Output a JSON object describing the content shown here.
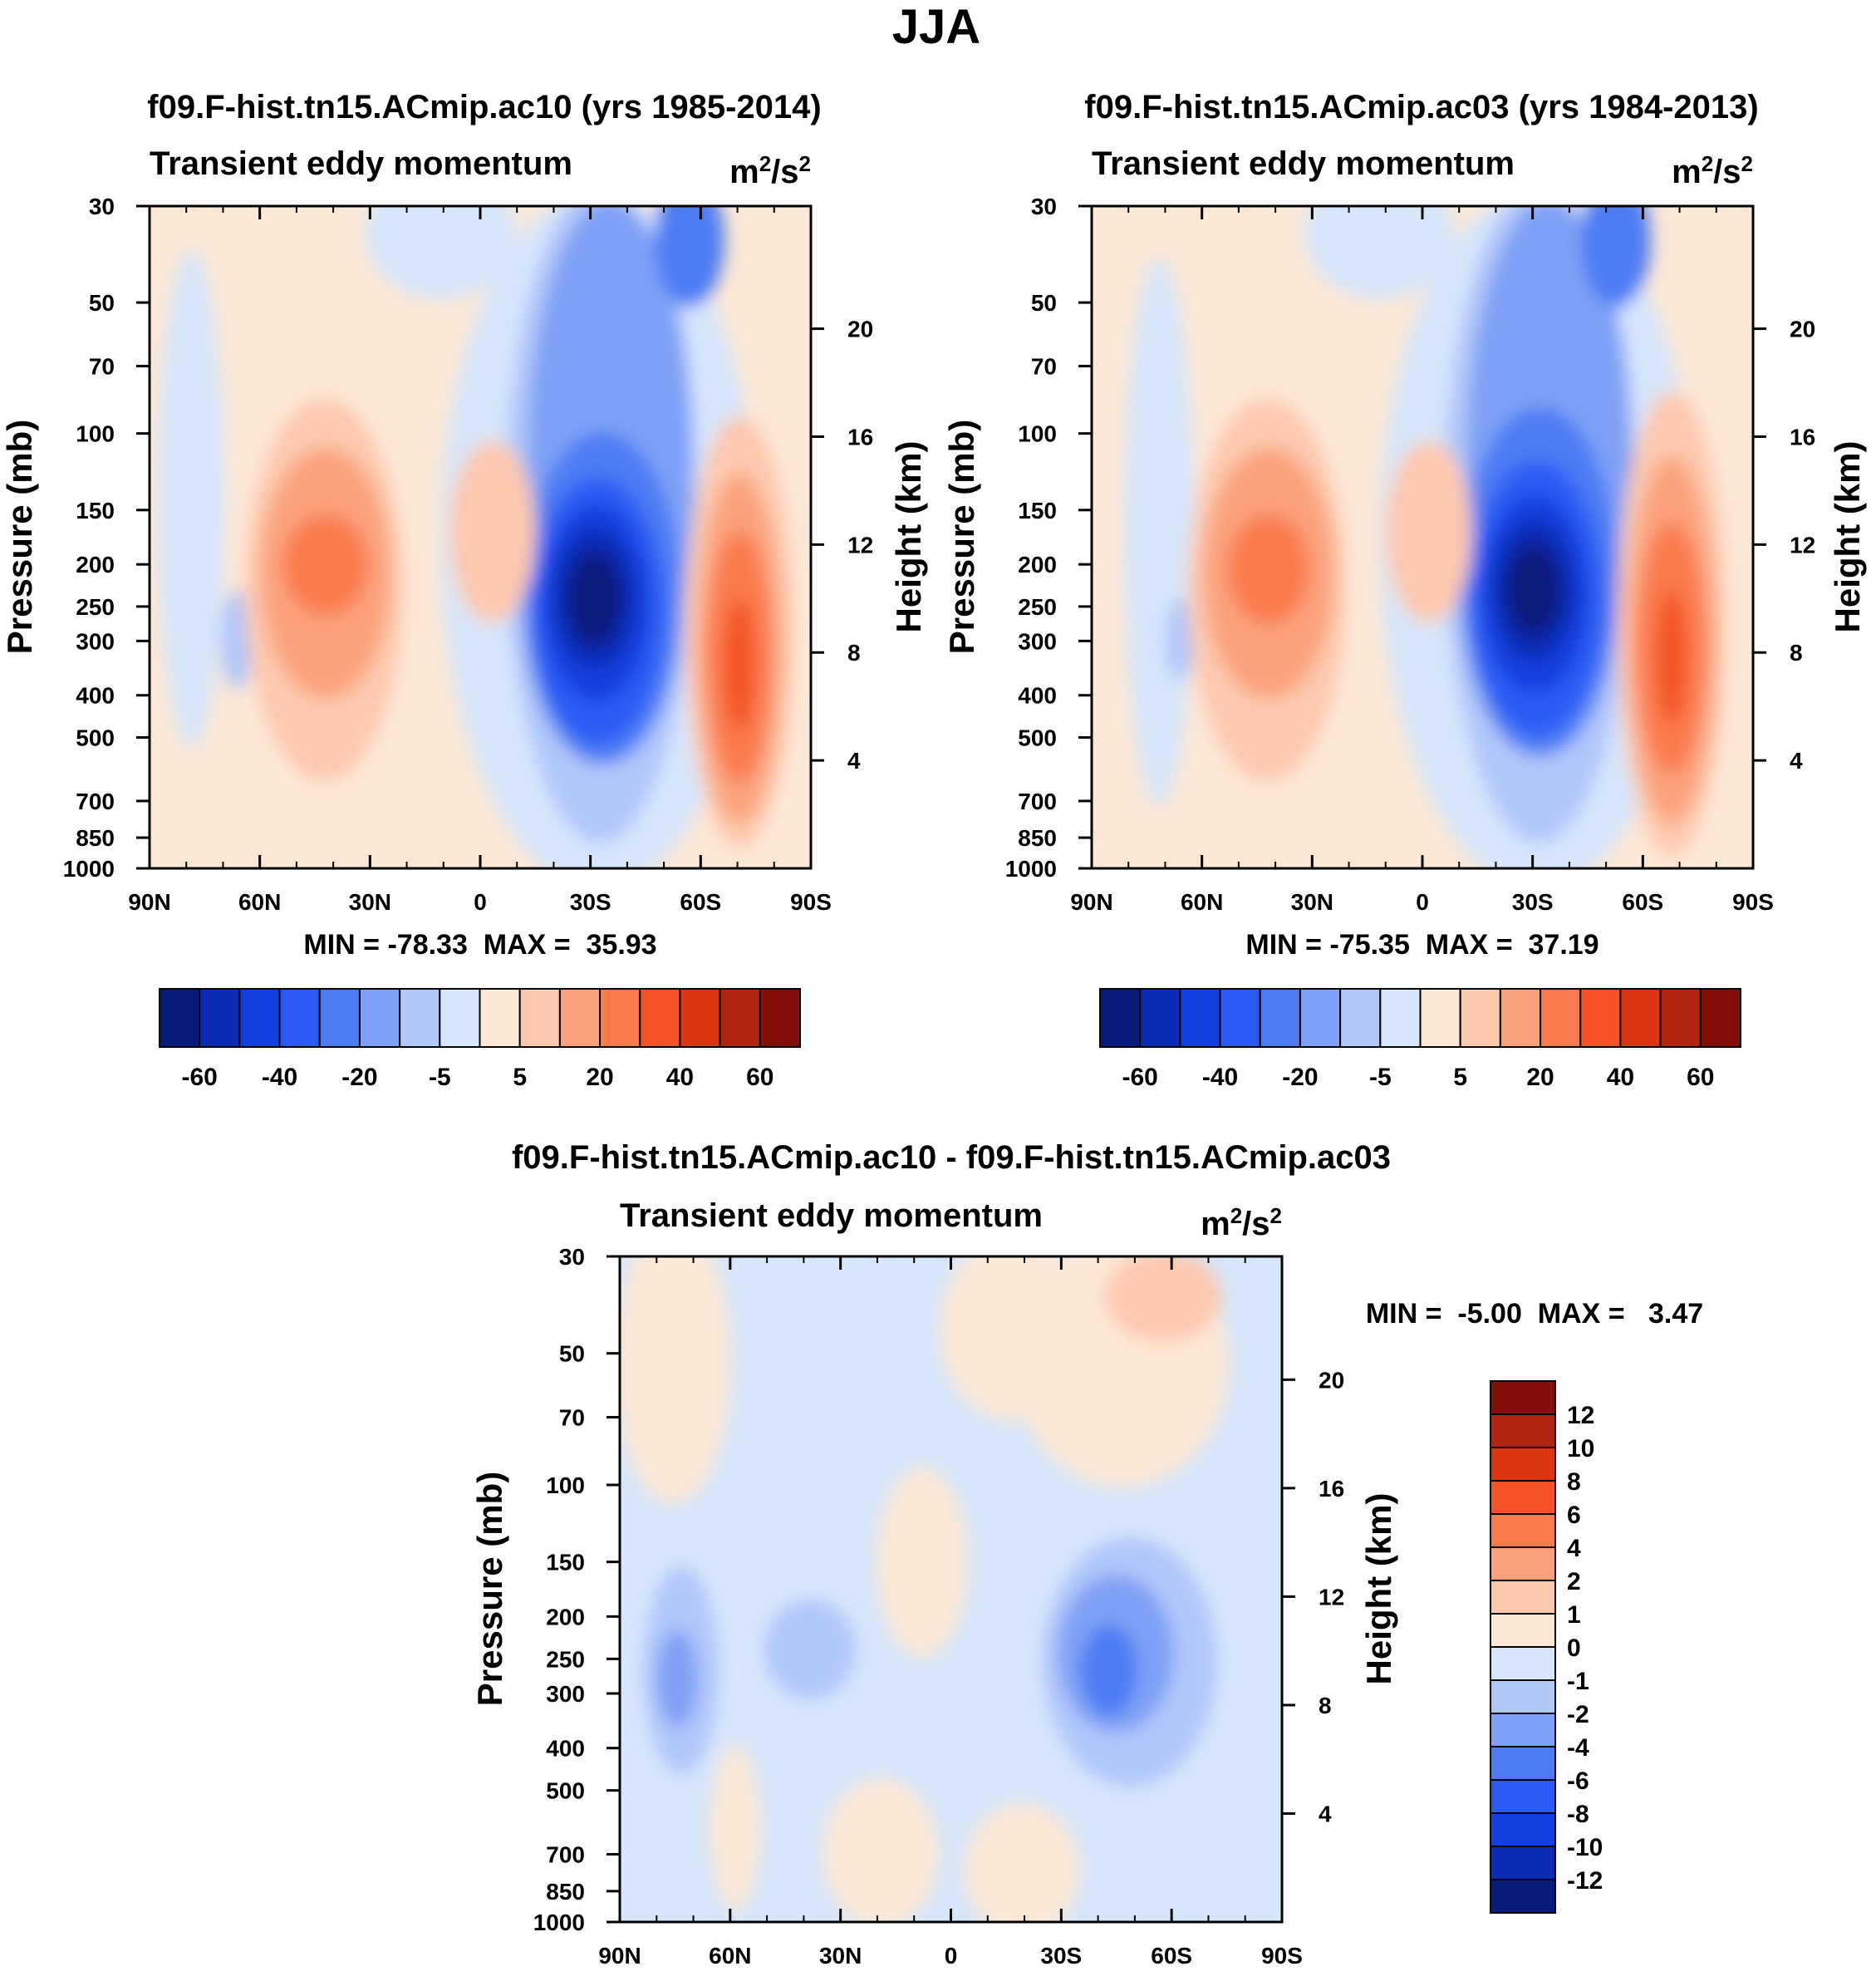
{
  "figure_title": "JJA",
  "chart_data": [
    {
      "type": "contour",
      "title": "f09.F-hist.tn15.ACmip.ac10 (yrs 1985-2014)",
      "subtitle_left": "Transient eddy momentum",
      "units": "m²/s²",
      "xlabel": "",
      "ylabel": "Pressure (mb)",
      "ylabel_right": "Height (km)",
      "x_ticks": [
        "90N",
        "60N",
        "30N",
        "0",
        "30S",
        "60S",
        "90S"
      ],
      "x_values": [
        90,
        60,
        30,
        0,
        -30,
        -60,
        -90
      ],
      "y_ticks": [
        30,
        50,
        70,
        100,
        150,
        200,
        250,
        300,
        400,
        500,
        700,
        850,
        1000
      ],
      "height_ticks": [
        20,
        16,
        12,
        8,
        4
      ],
      "ylim": [
        1000,
        30
      ],
      "stats": "MIN = -78.33  MAX =  35.93",
      "stats_min": -78.33,
      "stats_max": 35.93,
      "features": [
        {
          "lat": -32,
          "p": 270,
          "value": -75,
          "note": "SH subtropical negative core"
        },
        {
          "lat": -70,
          "p": 320,
          "value": 35,
          "note": "SH high-latitude positive core"
        },
        {
          "lat": 41,
          "p": 210,
          "value": 30,
          "note": "NH midlatitude positive core"
        },
        {
          "lat": 2,
          "p": 175,
          "value": 12,
          "note": "equatorial positive"
        },
        {
          "lat": 66,
          "p": 290,
          "value": -4,
          "note": "NH high-latitude weak negative"
        }
      ]
    },
    {
      "type": "contour",
      "title": "f09.F-hist.tn15.ACmip.ac03 (yrs 1984-2013)",
      "subtitle_left": "Transient eddy momentum",
      "units": "m²/s²",
      "xlabel": "",
      "ylabel": "Pressure (mb)",
      "ylabel_right": "Height (km)",
      "x_ticks": [
        "90N",
        "60N",
        "30N",
        "0",
        "30S",
        "60S",
        "90S"
      ],
      "x_values": [
        90,
        60,
        30,
        0,
        -30,
        -60,
        -90
      ],
      "y_ticks": [
        30,
        50,
        70,
        100,
        150,
        200,
        250,
        300,
        400,
        500,
        700,
        850,
        1000
      ],
      "height_ticks": [
        20,
        16,
        12,
        8,
        4
      ],
      "ylim": [
        1000,
        30
      ],
      "stats": "MIN = -75.35  MAX =  37.19",
      "stats_min": -75.35,
      "stats_max": 37.19,
      "features": [
        {
          "lat": -31,
          "p": 260,
          "value": -72,
          "note": "SH subtropical negative core"
        },
        {
          "lat": -68,
          "p": 300,
          "value": 37,
          "note": "SH high-latitude positive core"
        },
        {
          "lat": 41,
          "p": 210,
          "value": 32,
          "note": "NH midlatitude positive core"
        },
        {
          "lat": 3,
          "p": 175,
          "value": 12,
          "note": "equatorial positive"
        },
        {
          "lat": 66,
          "p": 290,
          "value": -3,
          "note": "NH high-latitude weak negative"
        }
      ]
    },
    {
      "type": "contour",
      "title": "f09.F-hist.tn15.ACmip.ac10 - f09.F-hist.tn15.ACmip.ac03",
      "subtitle_left": "Transient eddy momentum",
      "units": "m²/s²",
      "xlabel": "",
      "ylabel": "Pressure (mb)",
      "ylabel_right": "Height (km)",
      "x_ticks": [
        "90N",
        "60N",
        "30N",
        "0",
        "30S",
        "60S",
        "90S"
      ],
      "x_values": [
        90,
        60,
        30,
        0,
        -30,
        -60,
        -90
      ],
      "y_ticks": [
        30,
        50,
        70,
        100,
        150,
        200,
        250,
        300,
        400,
        500,
        700,
        850,
        1000
      ],
      "height_ticks": [
        20,
        16,
        12,
        8,
        4
      ],
      "ylim": [
        1000,
        30
      ],
      "stats": "MIN =  -5.00  MAX =   3.47",
      "stats_min": -5.0,
      "stats_max": 3.47,
      "features": [
        {
          "lat": -42,
          "p": 280,
          "value": -4.5,
          "note": "SH negative core"
        },
        {
          "lat": 70,
          "p": 270,
          "value": -3,
          "note": "NH high-latitude negative"
        },
        {
          "lat": 40,
          "p": 230,
          "value": -1.5,
          "note": "NH midlatitude weak negative"
        },
        {
          "lat": -47,
          "p": 40,
          "value": 2.5,
          "note": "upper SH positive"
        }
      ]
    }
  ],
  "colorbar_top": {
    "labels": [
      "-60",
      "-40",
      "-20",
      "-5",
      "5",
      "20",
      "40",
      "60"
    ],
    "colors": [
      "#081a7c",
      "#0a2cb4",
      "#1240e0",
      "#2a5cf5",
      "#4d7bf3",
      "#7ea0f6",
      "#b1c8f9",
      "#d6e6fb",
      "#fde8d6",
      "#fcc9ad",
      "#fba07c",
      "#f97a4c",
      "#f45224",
      "#dc3610",
      "#b22510",
      "#821008"
    ]
  },
  "colorbar_bottom": {
    "labels": [
      "12",
      "10",
      "8",
      "6",
      "4",
      "2",
      "1",
      "0",
      "-1",
      "-2",
      "-4",
      "-6",
      "-8",
      "-10",
      "-12"
    ],
    "colors": [
      "#821008",
      "#b22510",
      "#dc3610",
      "#f45224",
      "#f97a4c",
      "#fba07c",
      "#fcc9ad",
      "#fde8d6",
      "#d6e6fb",
      "#b1c8f9",
      "#7ea0f6",
      "#4d7bf3",
      "#2a5cf5",
      "#1240e0",
      "#0a2cb4",
      "#081a7c"
    ]
  }
}
